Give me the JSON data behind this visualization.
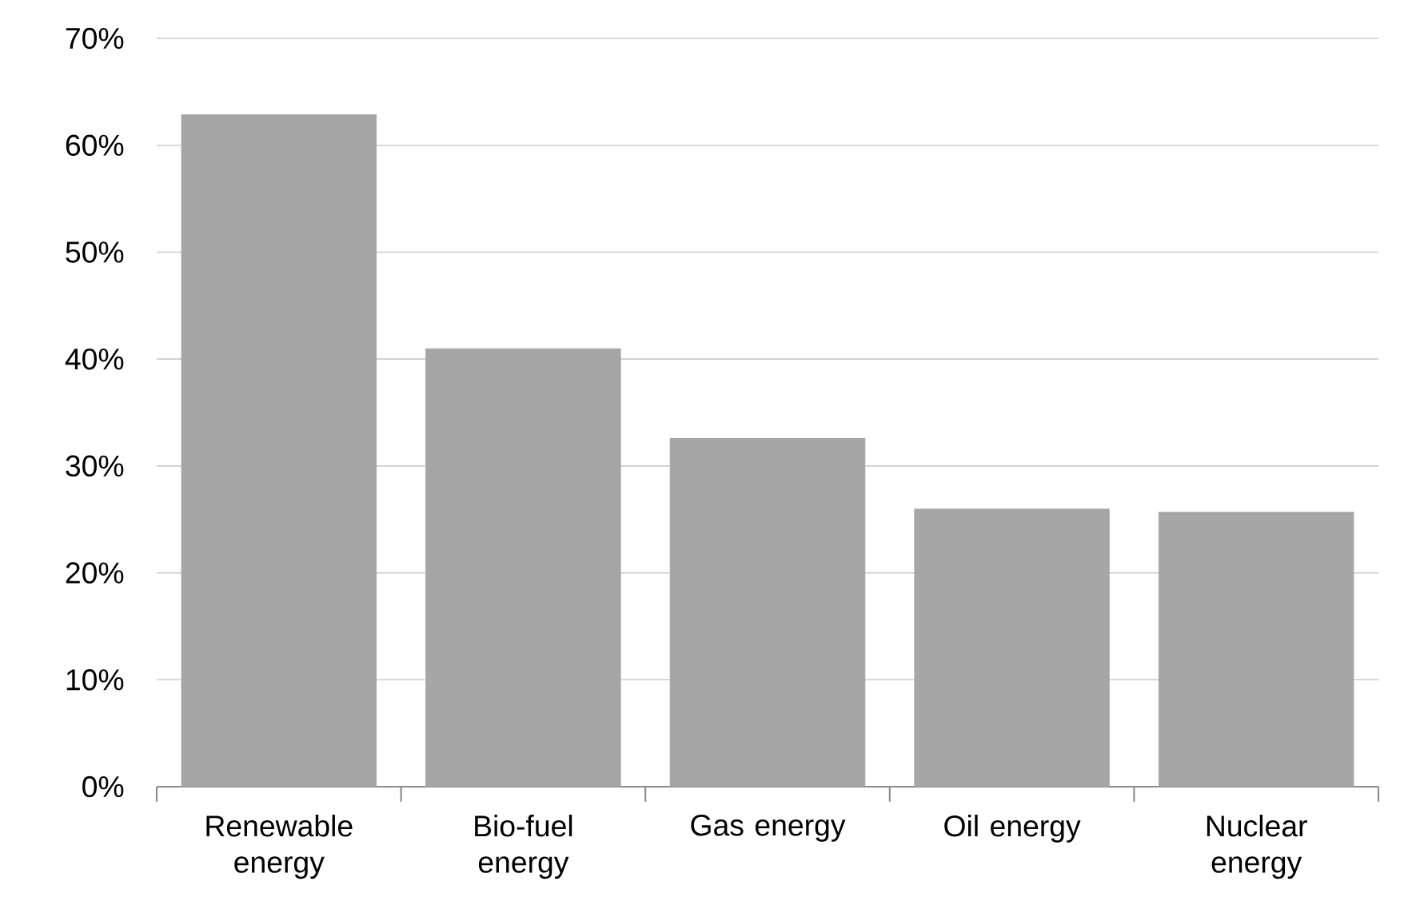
{
  "chart_data": {
    "type": "bar",
    "categories": [
      "Renewable energy",
      "Bio-fuel energy",
      "Gas energy",
      "Oil energy",
      "Nuclear energy"
    ],
    "values": [
      62.9,
      41.0,
      32.6,
      26.0,
      25.7
    ],
    "color": "#a6a6a6",
    "ylim": [
      0,
      70
    ],
    "yticks": [
      {
        "value": 0,
        "label": "0%"
      },
      {
        "value": 10,
        "label": "10%"
      },
      {
        "value": 20,
        "label": "20%"
      },
      {
        "value": 30,
        "label": "30%"
      },
      {
        "value": 40,
        "label": "40%"
      },
      {
        "value": 50,
        "label": "50%"
      },
      {
        "value": 60,
        "label": "60%"
      },
      {
        "value": 70,
        "label": "70%"
      }
    ],
    "grid": "y"
  }
}
